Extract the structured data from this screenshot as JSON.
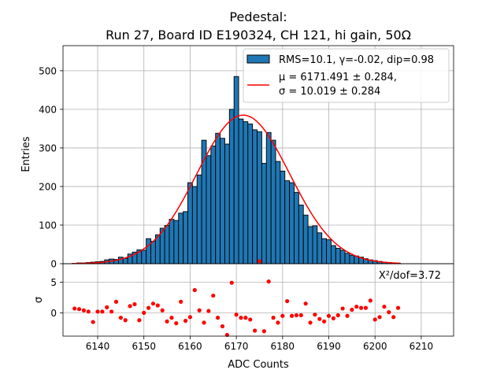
{
  "chart_data": {
    "type": "bar",
    "title": "Pedestal:",
    "subtitle": "Run 27, Board ID E190324, CH 121, hi gain, 50Ω",
    "xlabel": "ADC Counts",
    "ylabel": "Entries",
    "residual_ylabel": "σ",
    "xlim": [
      6132.5,
      6217
    ],
    "ylim": [
      0,
      565
    ],
    "residual_ylim": [
      -3.8,
      8
    ],
    "xticks": [
      "6140",
      "6150",
      "6160",
      "6170",
      "6180",
      "6190",
      "6200",
      "6210"
    ],
    "yticks": [
      "0",
      "100",
      "200",
      "300",
      "400",
      "500"
    ],
    "residual_yticks": [
      "0",
      "5"
    ],
    "grid": true,
    "legend_position": "top-right",
    "legend": {
      "hist_label": "RMS=10.1, γ=-0.02, dip=0.98",
      "fit_label_1": "μ = 6171.491 ± 0.284,",
      "fit_label_2": "σ = 10.019 ± 0.284"
    },
    "chi2_label": "X²/dof=3.72",
    "bar_color": "#1f77b4",
    "fit_color": "#ff0000",
    "residual_color": "#ff0000",
    "bin_width": 1,
    "fit": {
      "mu": 6171.491,
      "sigma": 10.019,
      "amplitude": 385
    },
    "bins": [
      6135,
      6136,
      6137,
      6138,
      6139,
      6140,
      6141,
      6142,
      6143,
      6144,
      6145,
      6146,
      6147,
      6148,
      6149,
      6150,
      6151,
      6152,
      6153,
      6154,
      6155,
      6156,
      6157,
      6158,
      6159,
      6160,
      6161,
      6162,
      6163,
      6164,
      6165,
      6166,
      6167,
      6168,
      6169,
      6170,
      6171,
      6172,
      6173,
      6174,
      6175,
      6176,
      6177,
      6178,
      6179,
      6180,
      6181,
      6182,
      6183,
      6184,
      6185,
      6186,
      6187,
      6188,
      6189,
      6190,
      6191,
      6192,
      6193,
      6194,
      6195,
      6196,
      6197,
      6198,
      6199,
      6200,
      6201,
      6202,
      6203,
      6204,
      6205
    ],
    "values": [
      1,
      2,
      2,
      3,
      4,
      5,
      6,
      10,
      12,
      11,
      17,
      14,
      25,
      30,
      36,
      35,
      65,
      58,
      75,
      92,
      99,
      115,
      112,
      131,
      135,
      210,
      200,
      230,
      320,
      280,
      305,
      338,
      325,
      310,
      400,
      485,
      375,
      368,
      362,
      347,
      342,
      260,
      340,
      320,
      265,
      240,
      215,
      210,
      185,
      152,
      126,
      96,
      98,
      80,
      65,
      62,
      47,
      40,
      35,
      27,
      22,
      20,
      17,
      13,
      10,
      8,
      6,
      4,
      3,
      2,
      1
    ],
    "residuals": [
      0.7,
      0.6,
      0.4,
      0.2,
      -1.5,
      0.2,
      0.2,
      0.9,
      0.2,
      1.8,
      -0.8,
      -1.2,
      1.1,
      1.4,
      -1.2,
      0.0,
      0.8,
      1.5,
      1.2,
      0.4,
      -1.4,
      -0.8,
      -1.7,
      1.8,
      -1.3,
      -0.7,
      3.7,
      0.4,
      -1.6,
      0.3,
      2.8,
      -0.8,
      -2.2,
      -3.6,
      4.9,
      -0.3,
      -0.8,
      -0.8,
      -1.1,
      -2.9,
      8.4,
      -3.0,
      5.1,
      -0.8,
      -1.6,
      -0.5,
      1.9,
      -0.5,
      -0.4,
      -0.4,
      1.5,
      -1.6,
      -0.3,
      -1.0,
      -1.4,
      -0.5,
      -0.9,
      -0.4,
      0.7,
      -0.5,
      0.5,
      1.0,
      0.8,
      0.8,
      2.0,
      -1.1,
      -0.7,
      1.0,
      0.1,
      -0.7,
      0.8
    ]
  }
}
